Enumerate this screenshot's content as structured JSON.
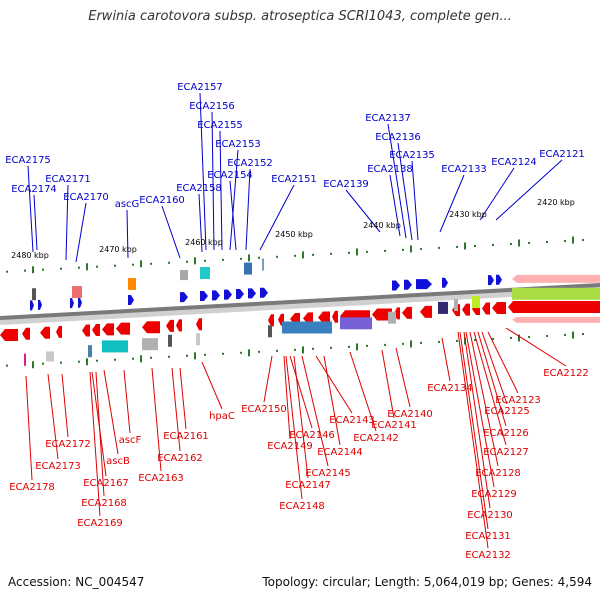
{
  "title": "Erwinia carotovora subsp. atroseptica SCRI1043, complete gen...",
  "footer": {
    "accession": "Accession: NC_004547",
    "topology": "Topology: circular; Length: 5,064,019 bp; Genes: 4,594"
  },
  "colors": {
    "forward_strand": "#1010d8",
    "reverse_strand": "#ee0000",
    "backbone": "#7a7a7a",
    "tick": "#2a7a2a"
  },
  "ticks": [
    "2480 kbp",
    "2470 kbp",
    "2460 kbp",
    "2450 kbp",
    "2440 kbp",
    "2430 kbp",
    "2420 kbp"
  ],
  "top_labels": [
    "ECA2175",
    "ECA2174",
    "ECA2171",
    "ECA2170",
    "ascG",
    "ECA2160",
    "ECA2158",
    "ECA2157",
    "ECA2156",
    "ECA2155",
    "ECA2153",
    "ECA2154",
    "ECA2152",
    "ECA2151",
    "ECA2139",
    "ECA2138",
    "ECA2137",
    "ECA2136",
    "ECA2135",
    "ECA2133",
    "ECA2124",
    "ECA2121"
  ],
  "bottom_labels": [
    "ECA2178",
    "ECA2173",
    "ECA2172",
    "ECA2167",
    "ECA2168",
    "ECA2169",
    "ascB",
    "ascF",
    "ECA2163",
    "ECA2162",
    "ECA2161",
    "hpaC",
    "ECA2150",
    "ECA2149",
    "ECA2146",
    "ECA2147",
    "ECA2148",
    "ECA2145",
    "ECA2143",
    "ECA2144",
    "ECA2142",
    "ECA2141",
    "ECA2140",
    "ECA2134",
    "ECA2122",
    "ECA2123",
    "ECA2125",
    "ECA2126",
    "ECA2127",
    "ECA2128",
    "ECA2129",
    "ECA2130",
    "ECA2131",
    "ECA2132"
  ]
}
